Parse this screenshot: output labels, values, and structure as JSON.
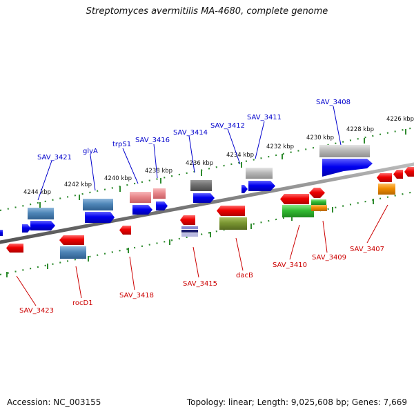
{
  "title": "Streptomyces avermitilis MA-4680, complete genome",
  "footer": {
    "accession": "Accession: NC_003155",
    "info": "Topology: linear; Length: 9,025,608 bp; Genes: 7,669"
  },
  "colors": {
    "backbone": "#808080",
    "tick_track": "#2e8b2e",
    "label_top": "#0000cc",
    "label_bottom": "#cc0000",
    "blue": "#0000ee",
    "steel": "#4f86b8",
    "red": "#ee0000",
    "pink": "#e8878a",
    "gray_dark": "#6e6e6e",
    "gray_light": "#b8b8b8",
    "green": "#33bb33",
    "olive": "#7a9632",
    "orange": "#f08c00",
    "navy_stripe": "#5a5aa0"
  },
  "kbp_labels": [
    "4244 kbp",
    "4242 kbp",
    "4240 kbp",
    "4238 kbp",
    "4236 kbp",
    "4234 kbp",
    "4232 kbp",
    "4230 kbp",
    "4228 kbp",
    "4226 kbp"
  ],
  "top_labels": [
    "SAV_3421",
    "glyA",
    "trpS1",
    "SAV_3416",
    "SAV_3414",
    "SAV_3412",
    "SAV_3411",
    "SAV_3408"
  ],
  "bottom_labels": [
    "SAV_3423",
    "rocD1",
    "SAV_3418",
    "SAV_3415",
    "dacB",
    "SAV_3410",
    "SAV_3409",
    "SAV_3407"
  ]
}
